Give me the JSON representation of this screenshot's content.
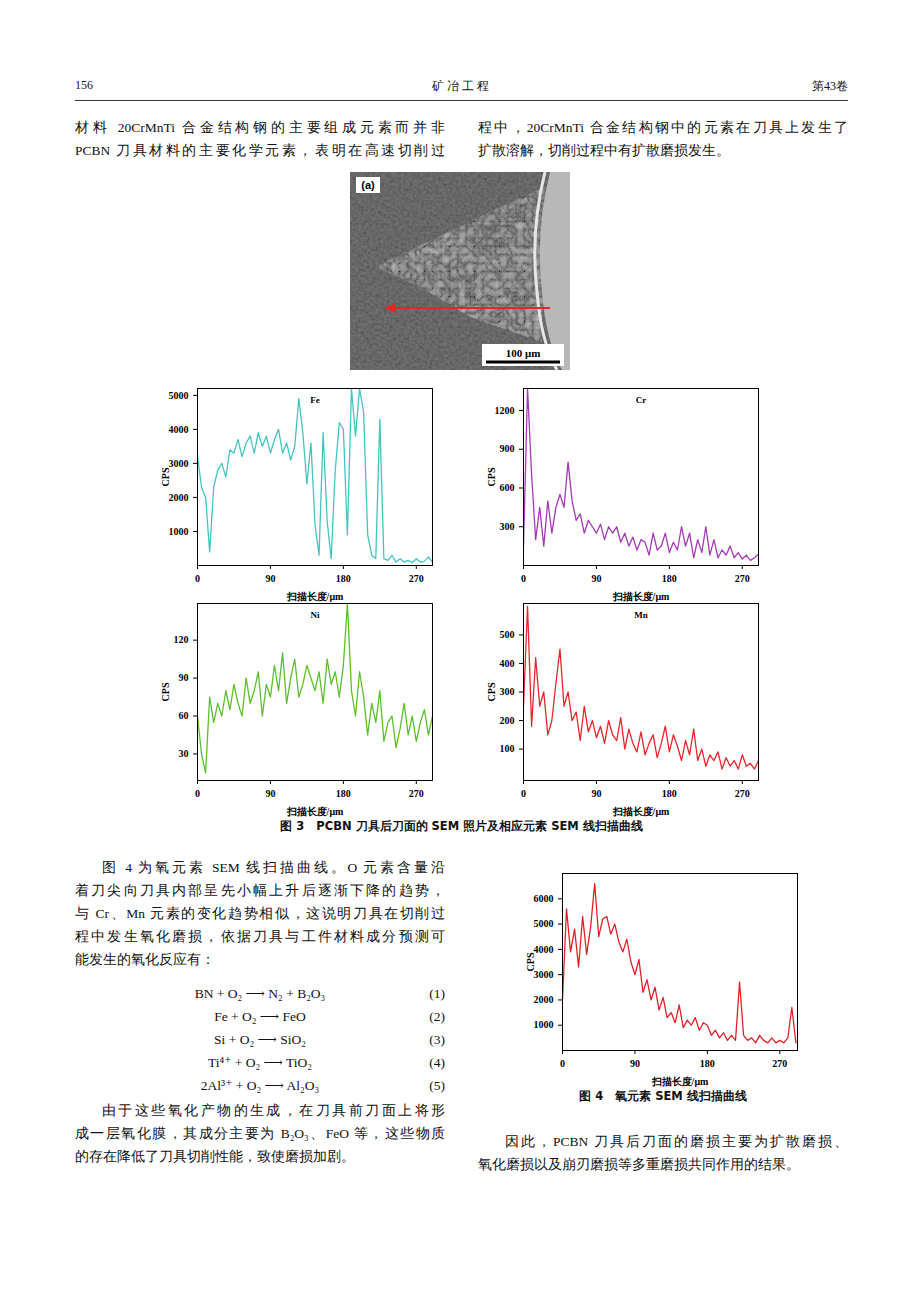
{
  "document": {
    "header": {
      "page": "156",
      "journal": "矿 冶 工 程",
      "volume": "第43卷"
    },
    "top_text": {
      "left": [
        "材料 20CrMnTi 合金结构钢的主要组成元素而并非",
        "PCBN 刀具材料的主要化学元素，表明在高速切削过"
      ],
      "right": [
        "程中，20CrMnTi 合金结构钢中的元素在刀具上发生了",
        "扩散溶解，切削过程中有扩散磨损发生。"
      ]
    },
    "sem_image": {
      "label": "(a)",
      "scale_bar": "100 μm"
    },
    "figure3_caption": "图 3　PCBN 刀具后刀面的 SEM 照片及相应元素 SEM 线扫描曲线",
    "left_paragraph1": [
      "图 4 为氧元素 SEM 线扫描曲线。O 元素含量沿",
      "着刀尖向刀具内部呈先小幅上升后逐渐下降的趋势，",
      "与 Cr、Mn 元素的变化趋势相似，这说明刀具在切削过",
      "程中发生氧化磨损，依据刀具与工件材料成分预测可",
      "能发生的氧化反应有："
    ],
    "equations": [
      {
        "formula": "BN + O₂ ⟶ N₂ + B₂O₃",
        "number": "(1)"
      },
      {
        "formula": "Fe + O₂ ⟶ FeO",
        "number": "(2)"
      },
      {
        "formula": "Si + O₂ ⟶ SiO₂",
        "number": "(3)"
      },
      {
        "formula": "Ti⁴⁺ + O₂ ⟶ TiO₂",
        "number": "(4)"
      },
      {
        "formula": "2Al³⁺ + O₂ ⟶ Al₂O₃",
        "number": "(5)"
      }
    ],
    "left_paragraph2": [
      "由于这些氧化产物的生成，在刀具前刀面上将形",
      "成一层氧化膜，其成分主要为 B₂O₃、FeO 等，这些物质",
      "的存在降低了刀具切削性能，致使磨损加剧。"
    ],
    "figure4_caption": "图 4　氧元素 SEM 线扫描曲线",
    "right_paragraph": [
      "因此，PCBN 刀具后刀面的磨损主要为扩散磨损、",
      "氧化磨损以及崩刃磨损等多重磨损共同作用的结果。"
    ]
  },
  "chart_data": [
    {
      "type": "line",
      "xlabel": "扫描长度/μm",
      "ylabel": "CPS",
      "xlim": [
        0,
        290
      ],
      "xticks": [
        0,
        90,
        180,
        270
      ],
      "ylim": [
        0,
        5200
      ],
      "yticks": [
        1000,
        2000,
        3000,
        4000,
        5000
      ],
      "grid": false,
      "x": [
        0,
        5,
        10,
        15,
        20,
        25,
        30,
        35,
        40,
        45,
        50,
        55,
        60,
        65,
        70,
        75,
        80,
        85,
        90,
        95,
        100,
        105,
        110,
        115,
        120,
        125,
        130,
        135,
        140,
        145,
        150,
        155,
        160,
        165,
        170,
        175,
        180,
        185,
        190,
        195,
        200,
        205,
        210,
        215,
        220,
        225,
        230,
        235,
        240,
        245,
        250,
        255,
        260,
        265,
        270,
        275,
        280,
        285,
        290
      ],
      "series": [
        {
          "name": "Fe",
          "color": "#45c4be",
          "values": [
            3200,
            2300,
            2000,
            400,
            2300,
            2800,
            3000,
            2600,
            3400,
            3300,
            3700,
            3200,
            3600,
            3800,
            3300,
            3900,
            3500,
            3800,
            3300,
            3700,
            4000,
            3300,
            3600,
            3100,
            3500,
            4900,
            3900,
            2400,
            3600,
            1200,
            300,
            3900,
            1300,
            200,
            2800,
            4200,
            4000,
            900,
            5200,
            3800,
            5200,
            4500,
            900,
            300,
            200,
            4300,
            200,
            150,
            300,
            100,
            200,
            100,
            150,
            80,
            200,
            100,
            120,
            250,
            100
          ]
        }
      ]
    },
    {
      "type": "line",
      "xlabel": "扫描长度/μm",
      "ylabel": "CPS",
      "xlim": [
        0,
        290
      ],
      "xticks": [
        0,
        90,
        180,
        270
      ],
      "ylim": [
        0,
        1370
      ],
      "yticks": [
        300,
        600,
        900,
        1200
      ],
      "grid": false,
      "x": [
        0,
        5,
        10,
        15,
        20,
        25,
        30,
        35,
        40,
        45,
        50,
        55,
        60,
        65,
        70,
        75,
        80,
        85,
        90,
        95,
        100,
        105,
        110,
        115,
        120,
        125,
        130,
        135,
        140,
        145,
        150,
        155,
        160,
        165,
        170,
        175,
        180,
        185,
        190,
        195,
        200,
        205,
        210,
        215,
        220,
        225,
        230,
        235,
        240,
        245,
        250,
        255,
        260,
        265,
        270,
        275,
        280,
        285,
        290
      ],
      "series": [
        {
          "name": "Cr",
          "color": "#a43ab6",
          "values": [
            150,
            1370,
            700,
            200,
            450,
            150,
            500,
            250,
            450,
            550,
            450,
            800,
            500,
            350,
            400,
            250,
            350,
            300,
            250,
            320,
            200,
            300,
            250,
            300,
            180,
            250,
            150,
            220,
            120,
            200,
            180,
            80,
            250,
            120,
            150,
            250,
            100,
            180,
            120,
            300,
            150,
            250,
            60,
            200,
            100,
            300,
            80,
            200,
            60,
            120,
            80,
            150,
            60,
            100,
            50,
            80,
            40,
            60,
            90
          ]
        }
      ]
    },
    {
      "type": "line",
      "xlabel": "扫描长度/μm",
      "ylabel": "CPS",
      "xlim": [
        0,
        290
      ],
      "xticks": [
        0,
        90,
        180,
        270
      ],
      "ylim": [
        9,
        149
      ],
      "yticks": [
        30,
        60,
        90,
        120
      ],
      "grid": false,
      "x": [
        0,
        5,
        10,
        15,
        20,
        25,
        30,
        35,
        40,
        45,
        50,
        55,
        60,
        65,
        70,
        75,
        80,
        85,
        90,
        95,
        100,
        105,
        110,
        115,
        120,
        125,
        130,
        135,
        140,
        145,
        150,
        155,
        160,
        165,
        170,
        175,
        180,
        185,
        190,
        195,
        200,
        205,
        210,
        215,
        220,
        225,
        230,
        235,
        240,
        245,
        250,
        255,
        260,
        265,
        270,
        275,
        280,
        285,
        290
      ],
      "series": [
        {
          "name": "Ni",
          "color": "#5cbf2c",
          "values": [
            60,
            30,
            15,
            75,
            55,
            70,
            60,
            80,
            65,
            85,
            70,
            60,
            90,
            70,
            80,
            95,
            60,
            85,
            75,
            100,
            80,
            110,
            70,
            90,
            105,
            75,
            85,
            100,
            90,
            80,
            95,
            70,
            105,
            85,
            95,
            75,
            100,
            149,
            80,
            60,
            95,
            75,
            45,
            70,
            55,
            80,
            40,
            55,
            60,
            35,
            50,
            70,
            45,
            60,
            40,
            55,
            65,
            45,
            60
          ]
        }
      ]
    },
    {
      "type": "line",
      "xlabel": "扫描长度/μm",
      "ylabel": "CPS",
      "xlim": [
        0,
        290
      ],
      "xticks": [
        0,
        90,
        180,
        270
      ],
      "ylim": [
        -10,
        610
      ],
      "yticks": [
        100,
        200,
        300,
        400,
        500
      ],
      "grid": false,
      "x": [
        0,
        5,
        10,
        15,
        20,
        25,
        30,
        35,
        40,
        45,
        50,
        55,
        60,
        65,
        70,
        75,
        80,
        85,
        90,
        95,
        100,
        105,
        110,
        115,
        120,
        125,
        130,
        135,
        140,
        145,
        150,
        155,
        160,
        165,
        170,
        175,
        180,
        185,
        190,
        195,
        200,
        205,
        210,
        215,
        220,
        225,
        230,
        235,
        240,
        245,
        250,
        255,
        260,
        265,
        270,
        275,
        280,
        285,
        290
      ],
      "series": [
        {
          "name": "Mn",
          "color": "#e8262a",
          "values": [
            250,
            600,
            180,
            420,
            250,
            300,
            150,
            200,
            330,
            450,
            250,
            300,
            200,
            230,
            130,
            250,
            160,
            200,
            140,
            180,
            120,
            200,
            150,
            130,
            210,
            100,
            170,
            120,
            90,
            160,
            80,
            120,
            150,
            70,
            120,
            180,
            90,
            150,
            110,
            60,
            130,
            80,
            170,
            60,
            100,
            40,
            80,
            60,
            90,
            30,
            70,
            40,
            60,
            30,
            80,
            40,
            50,
            30,
            60
          ]
        }
      ]
    },
    {
      "type": "line",
      "xlabel": "扫描长度/μm",
      "ylabel": "CPS",
      "xlim": [
        0,
        292
      ],
      "xticks": [
        0,
        90,
        180,
        270
      ],
      "ylim": [
        0,
        7000
      ],
      "yticks": [
        1000,
        2000,
        3000,
        4000,
        5000,
        6000
      ],
      "grid": false,
      "x": [
        0,
        5,
        10,
        15,
        20,
        25,
        30,
        35,
        40,
        45,
        50,
        55,
        60,
        65,
        70,
        75,
        80,
        85,
        90,
        95,
        100,
        105,
        110,
        115,
        120,
        125,
        130,
        135,
        140,
        145,
        150,
        155,
        160,
        165,
        170,
        175,
        180,
        185,
        190,
        195,
        200,
        205,
        210,
        215,
        220,
        225,
        230,
        235,
        240,
        245,
        250,
        255,
        260,
        265,
        270,
        275,
        280,
        285,
        290
      ],
      "series": [
        {
          "color": "#e2202a",
          "values": [
            2000,
            5600,
            3900,
            4800,
            3300,
            5300,
            3800,
            4900,
            6600,
            4500,
            5200,
            5300,
            4600,
            5000,
            4300,
            3900,
            4400,
            3500,
            3000,
            3600,
            2300,
            2800,
            2000,
            2500,
            1600,
            2100,
            1300,
            1500,
            1100,
            1800,
            900,
            1200,
            1000,
            1300,
            800,
            1100,
            1000,
            600,
            800,
            500,
            700,
            400,
            600,
            400,
            2700,
            600,
            400,
            500,
            300,
            600,
            400,
            300,
            500,
            300,
            400,
            300,
            500,
            1700,
            300
          ]
        }
      ]
    }
  ]
}
